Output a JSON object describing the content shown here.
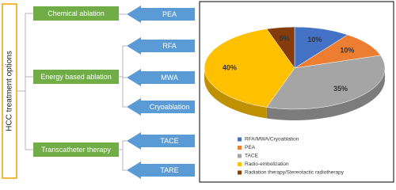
{
  "diagram": {
    "root": "HCC treatment options",
    "groups": [
      {
        "label": "Chemical ablation",
        "items": [
          "PEA"
        ]
      },
      {
        "label": "Energy based ablation",
        "items": [
          "RFA",
          "MWA",
          "Cryoablation"
        ]
      },
      {
        "label": "Transcatheter therapy",
        "items": [
          "TACE",
          "TARE"
        ]
      }
    ]
  },
  "chart_data": {
    "type": "pie",
    "categories": [
      "RFA/MWA/Cryoablation",
      "PEA",
      "TACE",
      "Radio-embolization",
      "Radiation therapy/Stereotactic radiotherapy"
    ],
    "values": [
      10,
      10,
      35,
      40,
      5
    ],
    "value_labels": [
      "10%",
      "10%",
      "35%",
      "40%",
      "5%"
    ],
    "colors": [
      "#4472c4",
      "#ed7d31",
      "#a5a5a5",
      "#ffc000",
      "#843c0c"
    ]
  }
}
